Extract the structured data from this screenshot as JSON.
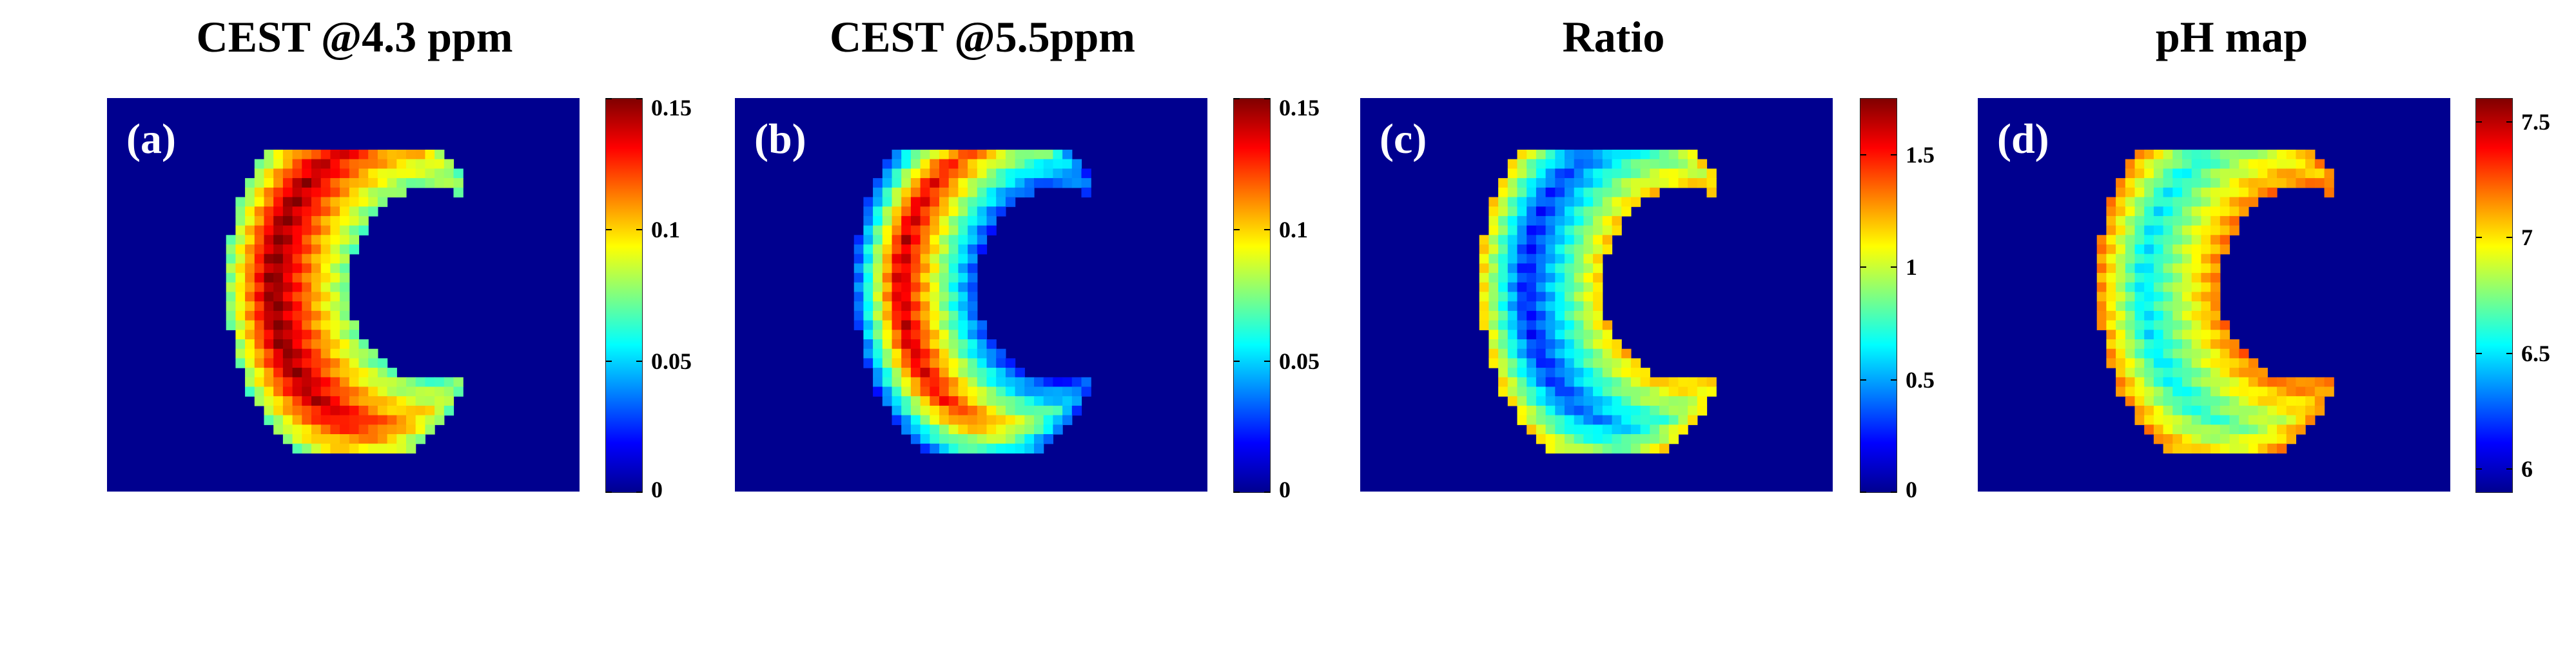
{
  "colormap": "jet",
  "background_color": "#00008f",
  "chart_data": [
    {
      "type": "heatmap",
      "panel_label": "(a)",
      "title": "CEST @4.3 ppm",
      "colorbar": {
        "min": 0,
        "max": 0.15,
        "ticks": [
          0,
          0.05,
          0.1,
          0.15
        ],
        "tick_labels": [
          "0",
          "0.05",
          "0.1",
          "0.15"
        ]
      },
      "rim_value": 0.07,
      "core_value": 0.15,
      "description_values": "kidney-shaped region; rim around 0.06-0.08, inner cortex up to ~0.15"
    },
    {
      "type": "heatmap",
      "panel_label": "(b)",
      "title": "CEST @5.5ppm",
      "colorbar": {
        "min": 0,
        "max": 0.15,
        "ticks": [
          0,
          0.05,
          0.1,
          0.15
        ],
        "tick_labels": [
          "0",
          "0.05",
          "0.1",
          "0.15"
        ]
      },
      "rim_value": 0.025,
      "core_value": 0.14,
      "description_values": "kidney-shaped region; rim around 0.02-0.04, inner band up to ~0.14"
    },
    {
      "type": "heatmap",
      "panel_label": "(c)",
      "title": "Ratio",
      "colorbar": {
        "min": 0,
        "max": 1.75,
        "ticks": [
          0,
          0.5,
          1,
          1.5
        ],
        "tick_labels": [
          "0",
          "0.5",
          "1",
          "1.5"
        ]
      },
      "rim_value": 1.2,
      "core_value": 0.25,
      "description_values": "kidney-shaped region; rim ~0.9-1.7, interior ~0.2-0.4"
    },
    {
      "type": "heatmap",
      "panel_label": "(d)",
      "title": "pH map",
      "colorbar": {
        "min": 5.9,
        "max": 7.6,
        "ticks": [
          6,
          6.5,
          7,
          7.5
        ],
        "tick_labels": [
          "6",
          "6.5",
          "7",
          "7.5"
        ]
      },
      "rim_value": 7.2,
      "core_value": 6.5,
      "description_values": "kidney-shaped region; rim ~7.0-7.5, interior ~6.4-6.6"
    }
  ]
}
